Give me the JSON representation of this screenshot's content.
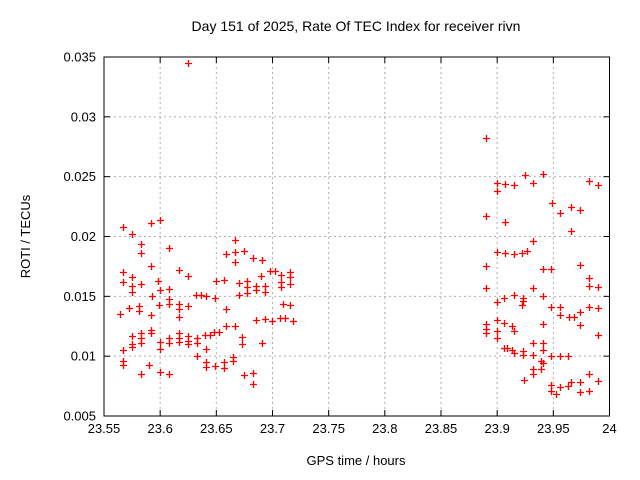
{
  "chart_data": {
    "type": "scatter",
    "title": "Day 151 of 2025, Rate Of TEC Index for receiver rivn",
    "xlabel": "GPS time / hours",
    "ylabel": "ROTI / TECUs",
    "xlim": [
      23.55,
      24
    ],
    "ylim": [
      0.005,
      0.035
    ],
    "grid": true,
    "legend": "none",
    "x_ticks": {
      "values": [
        23.55,
        23.6,
        23.65,
        23.7,
        23.75,
        23.8,
        23.85,
        23.9,
        23.95,
        24
      ],
      "labels": [
        "23.55",
        "23.6",
        "23.65",
        "23.7",
        "23.75",
        "23.8",
        "23.85",
        "23.9",
        "23.95",
        "24"
      ]
    },
    "y_ticks": {
      "values": [
        0.005,
        0.01,
        0.015,
        0.02,
        0.025,
        0.03,
        0.035
      ],
      "labels": [
        "0.005",
        "0.01",
        "0.015",
        "0.02",
        "0.025",
        "0.03",
        "0.035"
      ]
    },
    "style": {
      "marker_shape": "plus",
      "marker_color": "#ff0000",
      "marker_size": 7,
      "grid_color": "#b0b0b0",
      "axis_color": "#000000",
      "background": "#ffffff"
    },
    "series": [
      {
        "name": "ROTI",
        "points": [
          [
            23.625,
            0.0345
          ],
          [
            23.567,
            0.0208
          ],
          [
            23.575,
            0.0202
          ],
          [
            23.592,
            0.0211
          ],
          [
            23.6,
            0.0214
          ],
          [
            23.583,
            0.0194
          ],
          [
            23.583,
            0.0186
          ],
          [
            23.608,
            0.019
          ],
          [
            23.667,
            0.0197
          ],
          [
            23.659,
            0.0185
          ],
          [
            23.667,
            0.0187
          ],
          [
            23.675,
            0.0188
          ],
          [
            23.667,
            0.0179
          ],
          [
            23.683,
            0.0182
          ],
          [
            23.691,
            0.018
          ],
          [
            23.592,
            0.0175
          ],
          [
            23.617,
            0.0172
          ],
          [
            23.625,
            0.0167
          ],
          [
            23.698,
            0.0171
          ],
          [
            23.702,
            0.0171
          ],
          [
            23.69,
            0.0167
          ],
          [
            23.708,
            0.0168
          ],
          [
            23.716,
            0.017
          ],
          [
            23.716,
            0.0166
          ],
          [
            23.708,
            0.0162
          ],
          [
            23.716,
            0.016
          ],
          [
            23.708,
            0.0158
          ],
          [
            23.65,
            0.0163
          ],
          [
            23.657,
            0.0164
          ],
          [
            23.67,
            0.0161
          ],
          [
            23.677,
            0.0163
          ],
          [
            23.677,
            0.0158
          ],
          [
            23.685,
            0.0159
          ],
          [
            23.685,
            0.0155
          ],
          [
            23.693,
            0.0159
          ],
          [
            23.693,
            0.0154
          ],
          [
            23.567,
            0.017
          ],
          [
            23.575,
            0.0166
          ],
          [
            23.567,
            0.0162
          ],
          [
            23.575,
            0.0159
          ],
          [
            23.583,
            0.016
          ],
          [
            23.575,
            0.0154
          ],
          [
            23.598,
            0.0163
          ],
          [
            23.6,
            0.0155
          ],
          [
            23.608,
            0.0156
          ],
          [
            23.593,
            0.015
          ],
          [
            23.632,
            0.0151
          ],
          [
            23.636,
            0.0151
          ],
          [
            23.641,
            0.015
          ],
          [
            23.649,
            0.0149
          ],
          [
            23.67,
            0.0151
          ],
          [
            23.677,
            0.0153
          ],
          [
            23.608,
            0.0148
          ],
          [
            23.599,
            0.0143
          ],
          [
            23.608,
            0.0144
          ],
          [
            23.564,
            0.0135
          ],
          [
            23.572,
            0.014
          ],
          [
            23.581,
            0.0142
          ],
          [
            23.581,
            0.0138
          ],
          [
            23.592,
            0.0134
          ],
          [
            23.617,
            0.0144
          ],
          [
            23.625,
            0.0142
          ],
          [
            23.617,
            0.0139
          ],
          [
            23.617,
            0.0133
          ],
          [
            23.659,
            0.0139
          ],
          [
            23.709,
            0.0144
          ],
          [
            23.716,
            0.0143
          ],
          [
            23.685,
            0.013
          ],
          [
            23.693,
            0.0131
          ],
          [
            23.7,
            0.0129
          ],
          [
            23.707,
            0.0132
          ],
          [
            23.711,
            0.0132
          ],
          [
            23.718,
            0.0129
          ],
          [
            23.659,
            0.0125
          ],
          [
            23.667,
            0.0125
          ],
          [
            23.592,
            0.0122
          ],
          [
            23.583,
            0.0119
          ],
          [
            23.575,
            0.0117
          ],
          [
            23.583,
            0.0115
          ],
          [
            23.575,
            0.011
          ],
          [
            23.583,
            0.0111
          ],
          [
            23.567,
            0.0105
          ],
          [
            23.575,
            0.0108
          ],
          [
            23.592,
            0.0119
          ],
          [
            23.6,
            0.0112
          ],
          [
            23.608,
            0.0115
          ],
          [
            23.608,
            0.0111
          ],
          [
            23.617,
            0.0119
          ],
          [
            23.617,
            0.0115
          ],
          [
            23.617,
            0.0112
          ],
          [
            23.625,
            0.0117
          ],
          [
            23.625,
            0.0113
          ],
          [
            23.625,
            0.011
          ],
          [
            23.633,
            0.0115
          ],
          [
            23.633,
            0.0111
          ],
          [
            23.64,
            0.0118
          ],
          [
            23.644,
            0.0118
          ],
          [
            23.648,
            0.012
          ],
          [
            23.652,
            0.012
          ],
          [
            23.673,
            0.0116
          ],
          [
            23.673,
            0.011
          ],
          [
            23.691,
            0.0111
          ],
          [
            23.6,
            0.0106
          ],
          [
            23.641,
            0.0106
          ],
          [
            23.633,
            0.01
          ],
          [
            23.641,
            0.0095
          ],
          [
            23.641,
            0.0091
          ],
          [
            23.649,
            0.0092
          ],
          [
            23.657,
            0.0095
          ],
          [
            23.657,
            0.009
          ],
          [
            23.665,
            0.0099
          ],
          [
            23.665,
            0.0096
          ],
          [
            23.567,
            0.0096
          ],
          [
            23.567,
            0.0093
          ],
          [
            23.59,
            0.0093
          ],
          [
            23.583,
            0.0085
          ],
          [
            23.6,
            0.0087
          ],
          [
            23.608,
            0.0085
          ],
          [
            23.675,
            0.0084
          ],
          [
            23.683,
            0.0086
          ],
          [
            23.683,
            0.0077
          ],
          [
            23.89,
            0.0282
          ],
          [
            23.9,
            0.0245
          ],
          [
            23.9,
            0.0238
          ],
          [
            23.907,
            0.0244
          ],
          [
            23.915,
            0.0243
          ],
          [
            23.925,
            0.0251
          ],
          [
            23.932,
            0.0245
          ],
          [
            23.941,
            0.0252
          ],
          [
            23.982,
            0.0246
          ],
          [
            23.99,
            0.0243
          ],
          [
            23.949,
            0.0228
          ],
          [
            23.956,
            0.022
          ],
          [
            23.966,
            0.0225
          ],
          [
            23.974,
            0.0222
          ],
          [
            23.89,
            0.0217
          ],
          [
            23.907,
            0.0212
          ],
          [
            23.966,
            0.0205
          ],
          [
            23.932,
            0.0196
          ],
          [
            23.9,
            0.0187
          ],
          [
            23.907,
            0.0186
          ],
          [
            23.915,
            0.0185
          ],
          [
            23.922,
            0.0186
          ],
          [
            23.927,
            0.0188
          ],
          [
            23.89,
            0.0175
          ],
          [
            23.941,
            0.0173
          ],
          [
            23.948,
            0.0173
          ],
          [
            23.974,
            0.0176
          ],
          [
            23.982,
            0.0165
          ],
          [
            23.982,
            0.0159
          ],
          [
            23.99,
            0.0158
          ],
          [
            23.89,
            0.0157
          ],
          [
            23.9,
            0.0145
          ],
          [
            23.906,
            0.0149
          ],
          [
            23.915,
            0.0151
          ],
          [
            23.923,
            0.0149
          ],
          [
            23.923,
            0.0146
          ],
          [
            23.932,
            0.0157
          ],
          [
            23.941,
            0.015
          ],
          [
            23.922,
            0.0143
          ],
          [
            23.948,
            0.0141
          ],
          [
            23.956,
            0.0141
          ],
          [
            23.956,
            0.0134
          ],
          [
            23.964,
            0.0133
          ],
          [
            23.968,
            0.0133
          ],
          [
            23.974,
            0.0137
          ],
          [
            23.974,
            0.0126
          ],
          [
            23.982,
            0.0141
          ],
          [
            23.99,
            0.014
          ],
          [
            23.89,
            0.0127
          ],
          [
            23.89,
            0.0123
          ],
          [
            23.89,
            0.0119
          ],
          [
            23.9,
            0.013
          ],
          [
            23.9,
            0.0121
          ],
          [
            23.906,
            0.0128
          ],
          [
            23.913,
            0.0125
          ],
          [
            23.915,
            0.0121
          ],
          [
            23.9,
            0.0115
          ],
          [
            23.941,
            0.0127
          ],
          [
            23.99,
            0.0118
          ],
          [
            23.906,
            0.0107
          ],
          [
            23.909,
            0.0107
          ],
          [
            23.913,
            0.0105
          ],
          [
            23.915,
            0.0103
          ],
          [
            23.923,
            0.0104
          ],
          [
            23.923,
            0.0101
          ],
          [
            23.932,
            0.0111
          ],
          [
            23.932,
            0.0101
          ],
          [
            23.941,
            0.0111
          ],
          [
            23.941,
            0.0105
          ],
          [
            23.939,
            0.0096
          ],
          [
            23.948,
            0.01
          ],
          [
            23.956,
            0.01
          ],
          [
            23.963,
            0.01
          ],
          [
            23.941,
            0.0094
          ],
          [
            23.932,
            0.0089
          ],
          [
            23.939,
            0.0089
          ],
          [
            23.932,
            0.0085
          ],
          [
            23.924,
            0.008
          ],
          [
            23.982,
            0.0085
          ],
          [
            23.99,
            0.0079
          ],
          [
            23.974,
            0.0078
          ],
          [
            23.948,
            0.0076
          ],
          [
            23.948,
            0.0071
          ],
          [
            23.956,
            0.0074
          ],
          [
            23.963,
            0.0075
          ],
          [
            23.966,
            0.0078
          ],
          [
            23.974,
            0.007
          ],
          [
            23.982,
            0.0071
          ],
          [
            23.952,
            0.0068
          ]
        ]
      }
    ]
  }
}
